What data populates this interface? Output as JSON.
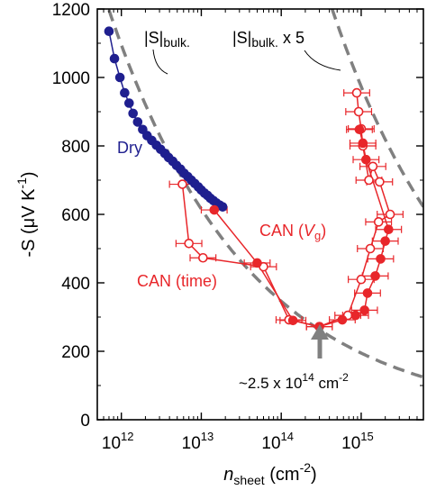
{
  "chart_data": {
    "type": "scatter",
    "xscale": "log",
    "xlim": [
      500000000000.0,
      6000000000000000.0
    ],
    "ylim": [
      0,
      1200
    ],
    "yticks": [
      0,
      200,
      400,
      600,
      800,
      1000,
      1200
    ],
    "xticks": [
      {
        "value": 1000000000000.0,
        "base": "10",
        "exp": "12"
      },
      {
        "value": 10000000000000.0,
        "base": "10",
        "exp": "13"
      },
      {
        "value": 100000000000000.0,
        "base": "10",
        "exp": "14"
      },
      {
        "value": 1000000000000000.0,
        "base": "10",
        "exp": "15"
      }
    ],
    "xlabel": {
      "main": "n",
      "sub": "sheet",
      "unit": " (cm",
      "sup": "-2",
      "close": ")"
    },
    "ylabel": {
      "main": "-S (μV K",
      "sup": "-1",
      "close": ")"
    },
    "colors": {
      "dry": "#1f1f8f",
      "can": "#e8262a",
      "bulk": "#808080"
    },
    "series": [
      {
        "name": "Dry",
        "marker": "filled-circle",
        "points": [
          [
            700000000000.0,
            1135
          ],
          [
            820000000000.0,
            1055
          ],
          [
            960000000000.0,
            1000
          ],
          [
            1100000000000.0,
            955
          ],
          [
            1250000000000.0,
            925
          ],
          [
            1400000000000.0,
            895
          ],
          [
            1600000000000.0,
            870
          ],
          [
            1850000000000.0,
            848
          ],
          [
            2100000000000.0,
            830
          ],
          [
            2400000000000.0,
            816
          ],
          [
            2750000000000.0,
            802
          ],
          [
            3100000000000.0,
            790
          ],
          [
            3500000000000.0,
            778
          ],
          [
            3900000000000.0,
            766
          ],
          [
            4400000000000.0,
            755
          ],
          [
            4900000000000.0,
            743
          ],
          [
            5500000000000.0,
            732
          ],
          [
            6100000000000.0,
            720
          ],
          [
            6800000000000.0,
            710
          ],
          [
            7500000000000.0,
            700
          ],
          [
            8300000000000.0,
            690
          ],
          [
            9200000000000.0,
            680
          ],
          [
            10000000000000.0,
            671
          ],
          [
            11000000000000.0,
            662
          ],
          [
            12000000000000.0,
            655
          ],
          [
            13000000000000.0,
            647
          ],
          [
            14200000000000.0,
            640
          ],
          [
            15500000000000.0,
            633
          ],
          [
            17000000000000.0,
            627
          ],
          [
            18500000000000.0,
            622
          ]
        ]
      },
      {
        "name": "CAN (time)",
        "marker": "open-circle",
        "points": [
          [
            5800000000000.0,
            688
          ],
          [
            7000000000000.0,
            515
          ],
          [
            10500000000000.0,
            473
          ],
          [
            60000000000000.0,
            447
          ],
          [
            125000000000000.0,
            292
          ],
          [
            300000000000000.0,
            272
          ],
          [
            680000000000000.0,
            305
          ],
          [
            1000000000000000.0,
            410
          ],
          [
            1300000000000000.0,
            500
          ],
          [
            1650000000000000.0,
            578
          ],
          [
            2300000000000000.0,
            600
          ],
          [
            1700000000000000.0,
            695
          ],
          [
            1400000000000000.0,
            740
          ],
          [
            1250000000000000.0,
            700
          ],
          [
            1050000000000000.0,
            800
          ],
          [
            1000000000000000.0,
            850
          ],
          [
            930000000000000.0,
            900
          ],
          [
            880000000000000.0,
            955
          ]
        ]
      },
      {
        "name": "CAN (Vg)",
        "marker": "filled-circle",
        "points": [
          [
            14500000000000.0,
            613
          ],
          [
            50000000000000.0,
            458
          ],
          [
            140000000000000.0,
            290
          ],
          [
            300000000000000.0,
            272
          ],
          [
            580000000000000.0,
            292
          ],
          [
            850000000000000.0,
            305
          ],
          [
            1100000000000000.0,
            320
          ],
          [
            1200000000000000.0,
            370
          ],
          [
            1500000000000000.0,
            420
          ],
          [
            1750000000000000.0,
            470
          ],
          [
            2000000000000000.0,
            522
          ],
          [
            2200000000000000.0,
            556
          ],
          [
            1150000000000000.0,
            760
          ],
          [
            1050000000000000.0,
            808
          ],
          [
            950000000000000.0,
            848
          ]
        ]
      }
    ],
    "curves": [
      {
        "name": "|S|bulk.",
        "factor": 1
      },
      {
        "name": "|S|bulk. x 5",
        "factor": 5
      }
    ],
    "annotations": {
      "dry": "Dry",
      "can_vg_main": "CAN (",
      "can_vg_var": "V",
      "can_vg_sub": "g",
      "can_vg_close": ")",
      "can_time": "CAN (time)",
      "bulk_left": "|S|",
      "bulk_left_sub": "bulk.",
      "bulk_right": "|S|",
      "bulk_right_sub": "bulk.",
      "bulk_right_tail": " x 5",
      "arrow_text": "~2.5 x 10",
      "arrow_sup": "14",
      "arrow_unit": " cm",
      "arrow_unit_sup": "-2"
    }
  }
}
